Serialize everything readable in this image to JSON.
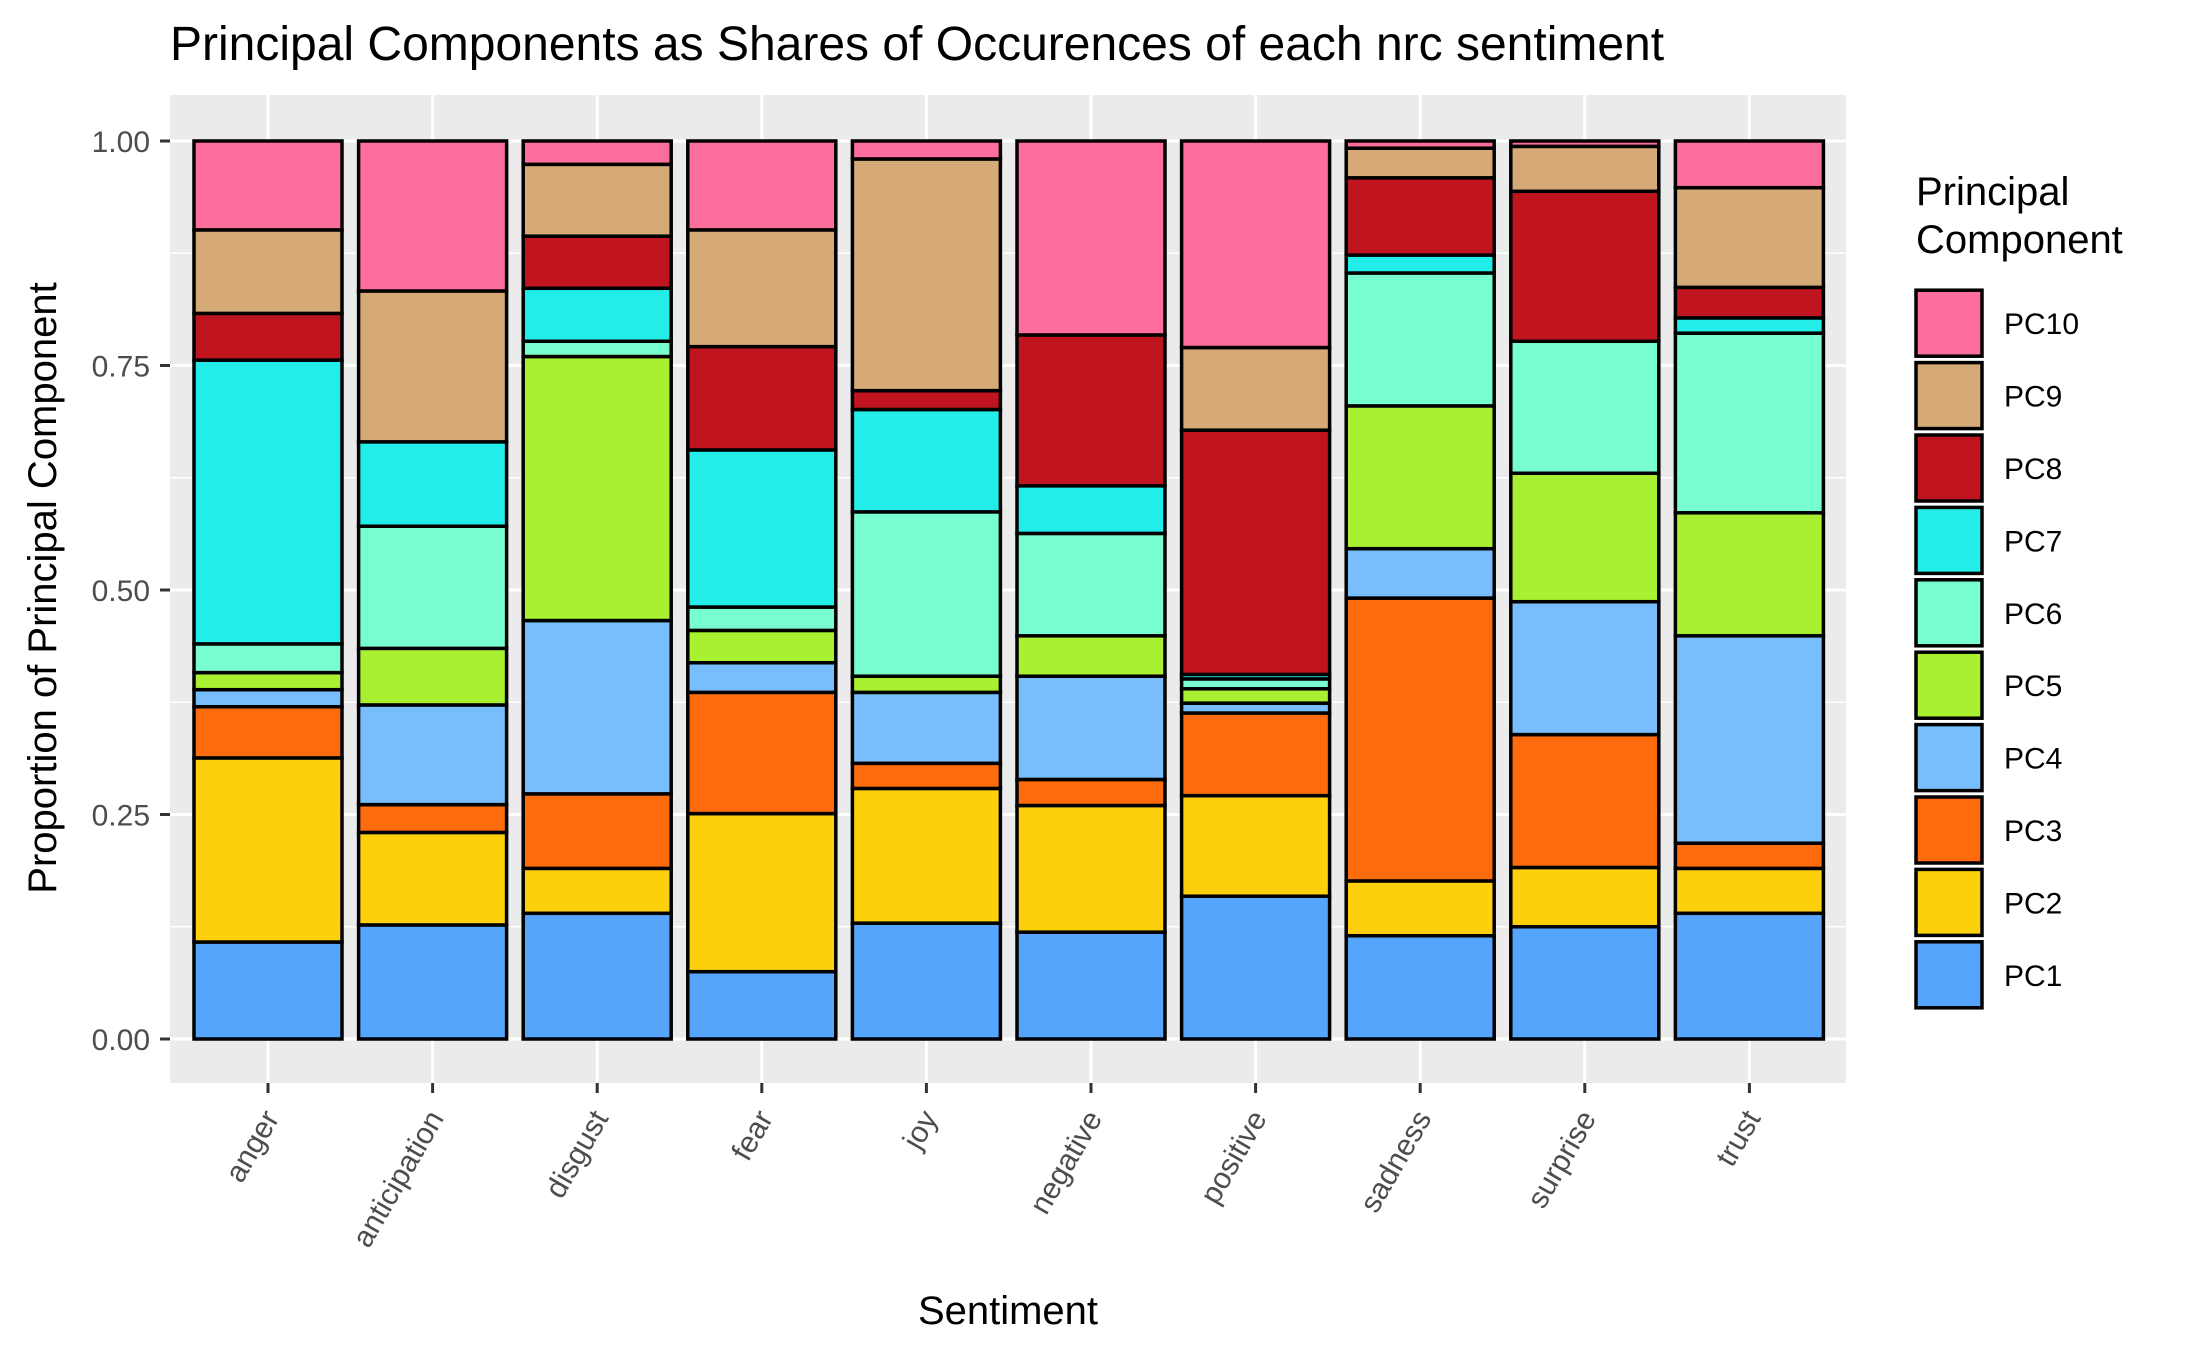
{
  "chart_data": {
    "type": "bar",
    "stacked": true,
    "title": "Principal Components as Shares of Occurences of each nrc sentiment",
    "xlabel": "Sentiment",
    "ylabel": "Proportion of Principal Component",
    "ylim": [
      0,
      1
    ],
    "yticks": [
      0,
      0.25,
      0.5,
      0.75,
      1
    ],
    "ytick_labels": [
      "0.00",
      "0.25",
      "0.50",
      "0.75",
      "1.00"
    ],
    "grid": true,
    "legend": {
      "title": "Principal Component",
      "title_lines": [
        "Principal",
        "Component"
      ],
      "placement": "right"
    },
    "categories": [
      "anger",
      "anticipation",
      "disgust",
      "fear",
      "joy",
      "negative",
      "positive",
      "sadness",
      "surprise",
      "trust"
    ],
    "series": [
      {
        "name": "PC1",
        "color": "#56A5FC",
        "values": [
          0.108,
          0.127,
          0.14,
          0.075,
          0.129,
          0.119,
          0.159,
          0.115,
          0.125,
          0.14
        ]
      },
      {
        "name": "PC2",
        "color": "#FDD00C",
        "values": [
          0.205,
          0.103,
          0.05,
          0.176,
          0.15,
          0.141,
          0.112,
          0.061,
          0.066,
          0.05
        ]
      },
      {
        "name": "PC3",
        "color": "#FD6B0C",
        "values": [
          0.057,
          0.031,
          0.083,
          0.135,
          0.028,
          0.029,
          0.092,
          0.315,
          0.148,
          0.028
        ]
      },
      {
        "name": "PC4",
        "color": "#79BEFC",
        "values": [
          0.019,
          0.111,
          0.193,
          0.033,
          0.079,
          0.115,
          0.011,
          0.055,
          0.148,
          0.231
        ]
      },
      {
        "name": "PC5",
        "color": "#A9F030",
        "values": [
          0.019,
          0.063,
          0.294,
          0.036,
          0.018,
          0.045,
          0.016,
          0.159,
          0.143,
          0.137
        ]
      },
      {
        "name": "PC6",
        "color": "#78FDCE",
        "values": [
          0.032,
          0.136,
          0.017,
          0.026,
          0.183,
          0.114,
          0.011,
          0.148,
          0.147,
          0.2
        ]
      },
      {
        "name": "PC7",
        "color": "#22EDE8",
        "values": [
          0.316,
          0.094,
          0.059,
          0.175,
          0.114,
          0.053,
          0.005,
          0.02,
          0.0,
          0.017
        ]
      },
      {
        "name": "PC8",
        "color": "#C0141F",
        "values": [
          0.052,
          0.0,
          0.058,
          0.115,
          0.021,
          0.168,
          0.272,
          0.086,
          0.167,
          0.034
        ]
      },
      {
        "name": "PC9",
        "color": "#D6AA76",
        "values": [
          0.093,
          0.168,
          0.08,
          0.13,
          0.258,
          0.0,
          0.092,
          0.033,
          0.05,
          0.111
        ]
      },
      {
        "name": "PC10",
        "color": "#FD6E9D",
        "values": [
          0.099,
          0.167,
          0.026,
          0.099,
          0.02,
          0.216,
          0.23,
          0.008,
          0.006,
          0.052
        ]
      }
    ]
  }
}
